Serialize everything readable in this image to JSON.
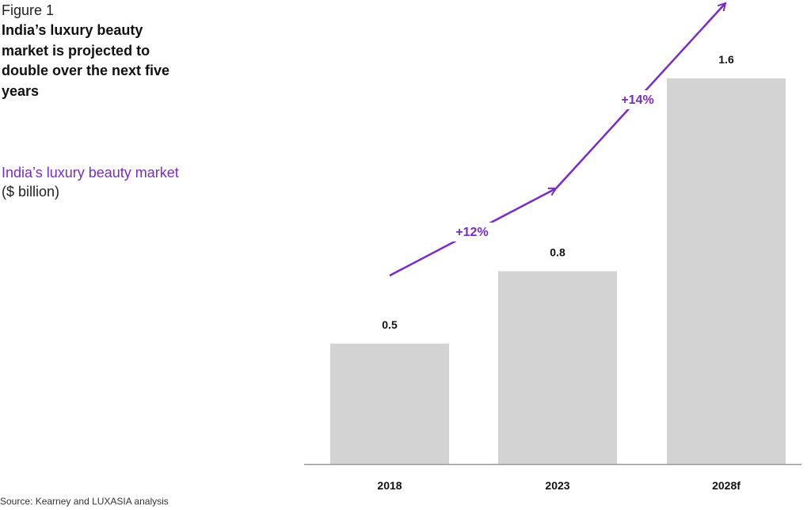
{
  "figure_label": "Figure 1",
  "title": "India’s luxury beauty market is projected to double over the next five years",
  "subtitle": "India’s luxury beauty market",
  "unit": "($ billion)",
  "source": "Source: Kearney and LUXASIA analysis",
  "colors": {
    "bar": "#d3d3d3",
    "accent": "#7a2bc6",
    "axis": "#999999"
  },
  "chart_data": {
    "type": "bar",
    "categories": [
      "2018",
      "2023",
      "2028f"
    ],
    "values": [
      0.5,
      0.8,
      1.6
    ],
    "value_labels": [
      "0.5",
      "0.8",
      "1.6"
    ],
    "ylim": [
      0,
      1.6
    ],
    "grid": false,
    "annotations": [
      {
        "text": "+12%",
        "from": "2018",
        "to": "2023"
      },
      {
        "text": "+14%",
        "from": "2023",
        "to": "2028f"
      }
    ]
  }
}
